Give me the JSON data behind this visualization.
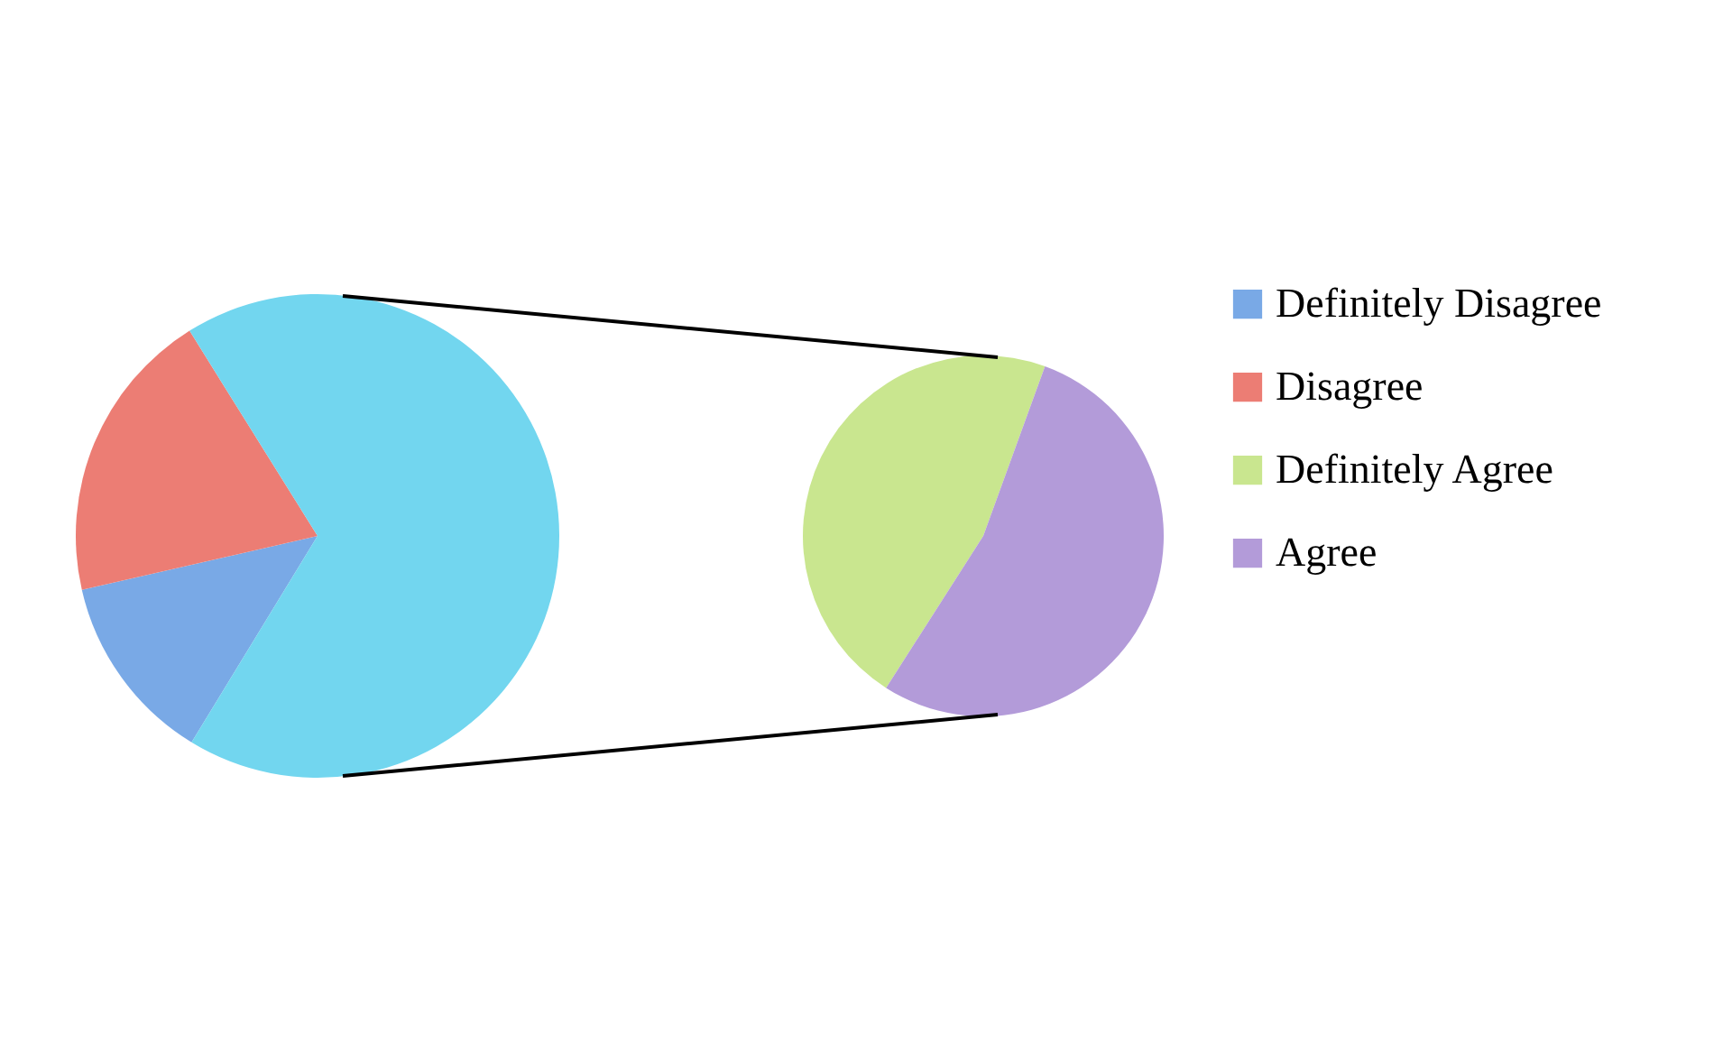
{
  "chart_data": [
    {
      "type": "pie",
      "categories": [
        "Definitely Disagree",
        "Disagree",
        null
      ],
      "values": [
        12.7,
        19.7,
        67.6
      ],
      "colors": [
        "#79a9e6",
        "#ec7d74",
        "#72d6ef"
      ],
      "legend": "right"
    },
    {
      "type": "pie",
      "categories": [
        "Definitely Agree",
        "Agree"
      ],
      "values": [
        46.5,
        53.5
      ],
      "colors": [
        "#c9e68f",
        "#b39bd9"
      ],
      "legend": "right"
    }
  ]
}
